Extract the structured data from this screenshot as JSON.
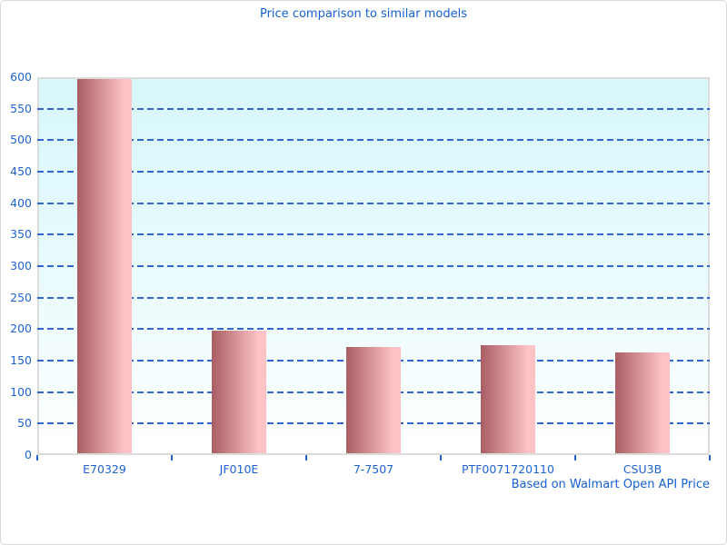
{
  "chart_data": {
    "type": "bar",
    "title": "Price comparison to similar models",
    "categories": [
      "E70329",
      "JF010E",
      "7-7507",
      "PTF0071720110",
      "CSU3B"
    ],
    "values": [
      597,
      197,
      171,
      174,
      163
    ],
    "xlabel": "",
    "ylabel": "",
    "ylim": [
      0,
      600
    ],
    "ytick_step": 50,
    "grid": "horizontal-dashed-blue",
    "legend": "none",
    "annotation": "Based on Walmart Open API Price",
    "colors": {
      "bar_gradient_left": "#aa5e64",
      "bar_gradient_right": "#fcc2c5",
      "plot_bg_top": "#d7f7fb",
      "plot_bg_bottom": "#ffffff",
      "gridline": "#3366cc",
      "text": "#1560d2",
      "plot_border": "#dcdcdc"
    }
  }
}
